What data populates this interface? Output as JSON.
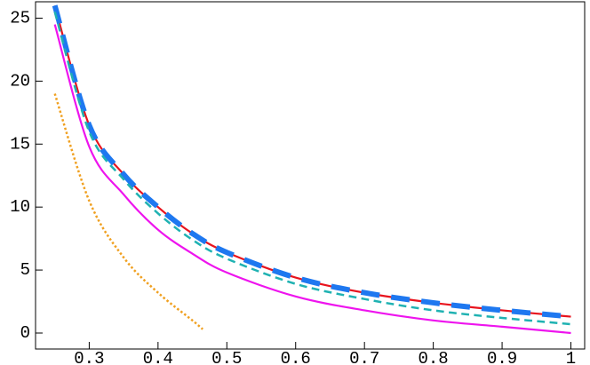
{
  "chart_data": {
    "type": "line",
    "xlim": [
      0.222,
      1.02
    ],
    "ylim": [
      -1.27,
      26.3
    ],
    "xticks": [
      0.3,
      0.4,
      0.5,
      0.6,
      0.7,
      0.8,
      0.9,
      1
    ],
    "yticks": [
      0,
      5,
      10,
      15,
      20,
      25
    ],
    "grid": false,
    "series": [
      {
        "color": "#e8141e",
        "linestyle": "solid",
        "linewidth": 2.2,
        "x": [
          0.25,
          0.3,
          0.35,
          0.4,
          0.45,
          0.5,
          0.6,
          0.7,
          0.8,
          0.9,
          1.0
        ],
        "values": [
          26,
          16.5,
          12.6,
          10.0,
          7.9,
          6.4,
          4.4,
          3.2,
          2.4,
          1.8,
          1.3
        ]
      },
      {
        "color": "#1e78f0",
        "linestyle": "dashed",
        "linewidth": 6,
        "x": [
          0.25,
          0.3,
          0.35,
          0.4,
          0.45,
          0.5,
          0.6,
          0.7,
          0.8,
          0.9,
          1.0
        ],
        "values": [
          26,
          16.5,
          12.6,
          10.0,
          7.9,
          6.4,
          4.4,
          3.2,
          2.4,
          1.8,
          1.3
        ]
      },
      {
        "color": "#1fb2b2",
        "linestyle": "dashed",
        "linewidth": 2.5,
        "x": [
          0.25,
          0.3,
          0.35,
          0.4,
          0.45,
          0.5,
          0.6,
          0.7,
          0.8,
          0.9,
          1.0
        ],
        "values": [
          25.5,
          16.0,
          12.2,
          9.5,
          7.4,
          5.9,
          3.9,
          2.7,
          1.8,
          1.2,
          0.7
        ]
      },
      {
        "color": "#ee14ee",
        "linestyle": "solid",
        "linewidth": 2.2,
        "x": [
          0.25,
          0.3,
          0.35,
          0.4,
          0.45,
          0.5,
          0.6,
          0.7,
          0.8,
          0.9,
          1.0
        ],
        "values": [
          24.5,
          14.8,
          11.0,
          8.2,
          6.3,
          4.8,
          2.9,
          1.8,
          1.0,
          0.5,
          0.0
        ]
      },
      {
        "color": "#f0a020",
        "linestyle": "dotted",
        "linewidth": 2.5,
        "x": [
          0.25,
          0.3,
          0.35,
          0.4,
          0.45,
          0.465
        ],
        "values": [
          19,
          10.5,
          6.0,
          3.2,
          1.0,
          0.3
        ]
      }
    ]
  }
}
